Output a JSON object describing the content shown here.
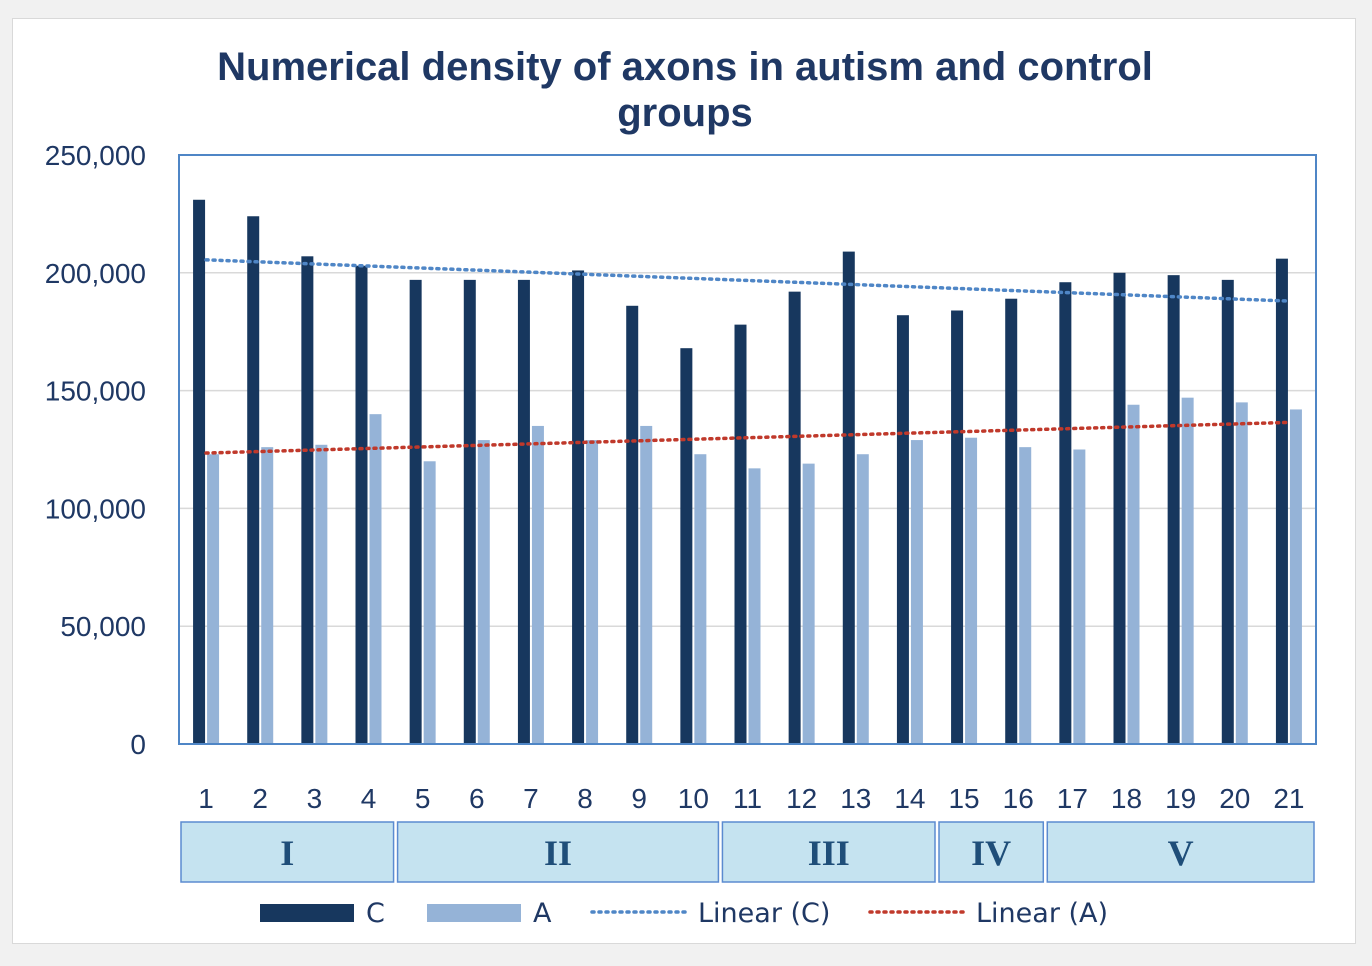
{
  "chart_data": {
    "type": "bar",
    "title": "Numerical density of axons in autism and control groups",
    "xlabel": "",
    "ylabel": "",
    "ylim": [
      0,
      250000
    ],
    "yticks": [
      "0",
      "50,000",
      "100,000",
      "150,000",
      "200,000",
      "250,000"
    ],
    "categories": [
      "1",
      "2",
      "3",
      "4",
      "5",
      "6",
      "7",
      "8",
      "9",
      "10",
      "11",
      "12",
      "13",
      "14",
      "15",
      "16",
      "17",
      "18",
      "19",
      "20",
      "21"
    ],
    "series": [
      {
        "name": "C",
        "color": "#17375e",
        "values": [
          231000,
          224000,
          207000,
          203000,
          197000,
          197000,
          197000,
          201000,
          186000,
          168000,
          178000,
          192000,
          209000,
          182000,
          184000,
          189000,
          196000,
          200000,
          199000,
          197000,
          206000
        ]
      },
      {
        "name": "A",
        "color": "#95b3d7",
        "values": [
          123000,
          126000,
          127000,
          140000,
          120000,
          129000,
          135000,
          129000,
          135000,
          123000,
          117000,
          119000,
          123000,
          129000,
          130000,
          126000,
          125000,
          144000,
          147000,
          145000,
          142000
        ]
      }
    ],
    "trendlines": [
      {
        "name": "Linear (C)",
        "of": "C",
        "color": "#4f86c6",
        "style": "dotted",
        "start": 205500,
        "end": 188000
      },
      {
        "name": "Linear (A)",
        "of": "A",
        "color": "#c0392b",
        "style": "dotted",
        "start": 123500,
        "end": 136500
      }
    ],
    "groups": [
      {
        "label": "I",
        "from": 1,
        "to": 4
      },
      {
        "label": "II",
        "from": 5,
        "to": 10
      },
      {
        "label": "III",
        "from": 11,
        "to": 14
      },
      {
        "label": "IV",
        "from": 15,
        "to": 16
      },
      {
        "label": "V",
        "from": 17,
        "to": 21
      }
    ],
    "legend": {
      "position": "bottom",
      "items": [
        "C",
        "A",
        "Linear (C)",
        "Linear (A)"
      ]
    },
    "grid": true,
    "colors": {
      "plot_border": "#4f86c6",
      "gridline": "#d9d9d9",
      "group_fill": "#c5e3f0",
      "group_border": "#5b8bd0",
      "text": "#1f3864"
    }
  }
}
